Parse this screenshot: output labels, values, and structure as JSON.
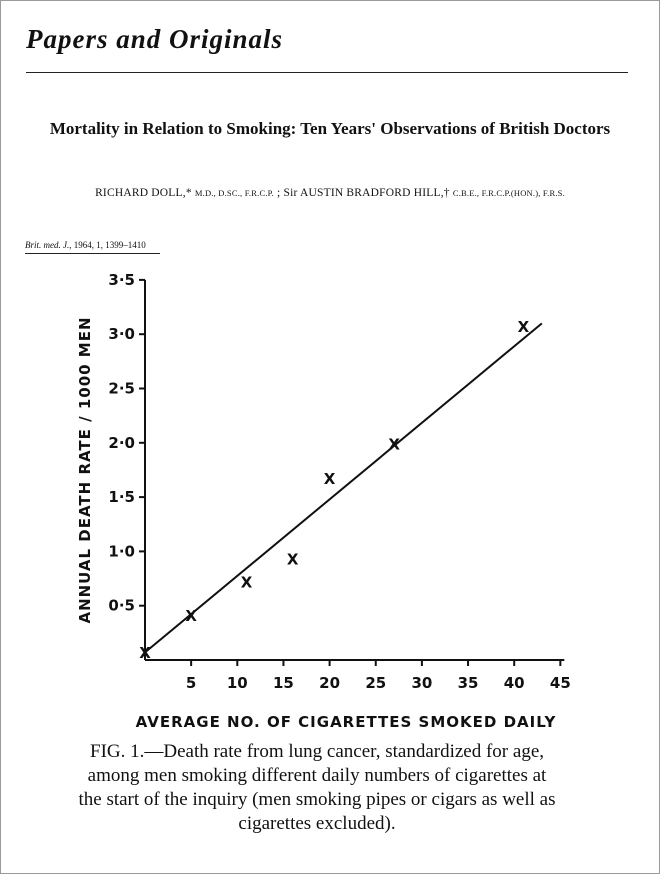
{
  "page": {
    "section_heading": "Papers and Originals",
    "title": "Mortality in Relation to Smoking: Ten Years' Observations of British Doctors",
    "authors": {
      "author1_name": "RICHARD DOLL,*",
      "author1_degrees": "M.D., D.SC., F.R.C.P.",
      "separator": ";",
      "author2_name": "Sir AUSTIN BRADFORD HILL,†",
      "author2_degrees": "C.B.E., F.R.C.P.(HON.), F.R.S."
    },
    "citation": {
      "journal": "Brit. med. J.,",
      "details": "1964, 1, 1399–1410"
    },
    "caption": "FIG. 1.—Death rate from lung cancer, standardized for age, among men smoking different daily numbers of cigarettes at the start of the inquiry (men smoking pipes or cigars as well as cigarettes excluded)."
  },
  "chart_data": {
    "type": "scatter",
    "title": "",
    "xlabel": "AVERAGE NO. OF CIGARETTES SMOKED DAILY",
    "ylabel": "ANNUAL DEATH RATE / 1000 MEN",
    "xlim": [
      0,
      45
    ],
    "ylim": [
      0,
      3.5
    ],
    "x_ticks": [
      5,
      10,
      15,
      20,
      25,
      30,
      35,
      40,
      45
    ],
    "x_tick_labels": [
      "5",
      "10",
      "15",
      "20",
      "25",
      "30",
      "35",
      "40",
      "45"
    ],
    "y_ticks": [
      0.5,
      1.0,
      1.5,
      2.0,
      2.5,
      3.0,
      3.5
    ],
    "y_tick_labels": [
      "0·5",
      "1·0",
      "1·5",
      "2·0",
      "2·5",
      "3·0",
      "3·5"
    ],
    "marker": "X",
    "grid": false,
    "series": [
      {
        "x": [
          0,
          5,
          11,
          16,
          20,
          27,
          41
        ],
        "y": [
          0.07,
          0.41,
          0.72,
          0.93,
          1.67,
          1.99,
          3.07
        ]
      }
    ],
    "fit_line": {
      "x": [
        0,
        43
      ],
      "y": [
        0.07,
        3.1
      ]
    }
  }
}
